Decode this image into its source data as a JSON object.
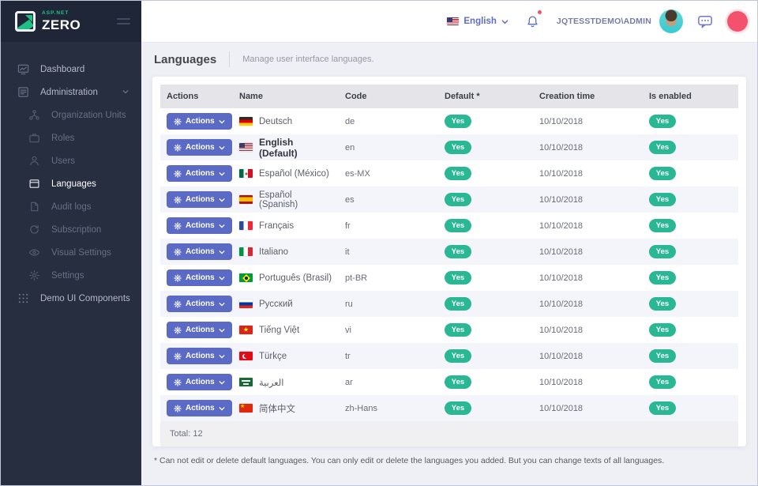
{
  "brand": {
    "top": "ASP.NET",
    "bottom": "ZERO"
  },
  "sidebar": {
    "items": [
      {
        "label": "Dashboard",
        "icon": "dashboard-icon",
        "level": "root",
        "active": false,
        "chevron": false
      },
      {
        "label": "Administration",
        "icon": "administration-icon",
        "level": "root",
        "active": false,
        "chevron": true
      },
      {
        "label": "Organization Units",
        "icon": "organization-units-icon",
        "level": "sub",
        "active": false,
        "chevron": false
      },
      {
        "label": "Roles",
        "icon": "roles-icon",
        "level": "sub",
        "active": false,
        "chevron": false
      },
      {
        "label": "Users",
        "icon": "users-icon",
        "level": "sub",
        "active": false,
        "chevron": false
      },
      {
        "label": "Languages",
        "icon": "languages-icon",
        "level": "sub",
        "active": true,
        "chevron": false
      },
      {
        "label": "Audit logs",
        "icon": "audit-logs-icon",
        "level": "sub",
        "active": false,
        "chevron": false
      },
      {
        "label": "Subscription",
        "icon": "subscription-icon",
        "level": "sub",
        "active": false,
        "chevron": false
      },
      {
        "label": "Visual Settings",
        "icon": "visual-settings-icon",
        "level": "sub",
        "active": false,
        "chevron": false
      },
      {
        "label": "Settings",
        "icon": "settings-icon",
        "level": "sub",
        "active": false,
        "chevron": false
      },
      {
        "label": "Demo UI Components",
        "icon": "demo-ui-components-icon",
        "level": "root",
        "active": false,
        "chevron": false
      }
    ]
  },
  "topbar": {
    "language": "English",
    "language_flag": "us",
    "username": "JQTESSTDEMO\\ADMIN",
    "icons": [
      "us-flag-icon",
      "chevron-down-icon",
      "bell-icon",
      "avatar",
      "chat-icon",
      "quick-panel-circle"
    ]
  },
  "page": {
    "title": "Languages",
    "subtitle": "Manage user interface languages.",
    "footnote": "* Can not edit or delete default languages. You can only edit or delete the languages you added. But you can change texts of all languages."
  },
  "table": {
    "headers": [
      "Actions",
      "Name",
      "Code",
      "Default *",
      "Creation time",
      "Is enabled"
    ],
    "actions_label": "Actions",
    "total_label": "Total: 12",
    "rows": [
      {
        "name": "Deutsch",
        "flag": "de",
        "code": "de",
        "default": "Yes",
        "creation_time": "10/10/2018",
        "is_enabled": "Yes",
        "bold": false
      },
      {
        "name": "English (Default)",
        "flag": "us",
        "code": "en",
        "default": "Yes",
        "creation_time": "10/10/2018",
        "is_enabled": "Yes",
        "bold": true
      },
      {
        "name": "Español (México)",
        "flag": "mx",
        "code": "es-MX",
        "default": "Yes",
        "creation_time": "10/10/2018",
        "is_enabled": "Yes",
        "bold": false
      },
      {
        "name": "Español (Spanish)",
        "flag": "es",
        "code": "es",
        "default": "Yes",
        "creation_time": "10/10/2018",
        "is_enabled": "Yes",
        "bold": false
      },
      {
        "name": "Français",
        "flag": "fr",
        "code": "fr",
        "default": "Yes",
        "creation_time": "10/10/2018",
        "is_enabled": "Yes",
        "bold": false
      },
      {
        "name": "Italiano",
        "flag": "it",
        "code": "it",
        "default": "Yes",
        "creation_time": "10/10/2018",
        "is_enabled": "Yes",
        "bold": false
      },
      {
        "name": "Português (Brasil)",
        "flag": "br",
        "code": "pt-BR",
        "default": "Yes",
        "creation_time": "10/10/2018",
        "is_enabled": "Yes",
        "bold": false
      },
      {
        "name": "Русский",
        "flag": "ru",
        "code": "ru",
        "default": "Yes",
        "creation_time": "10/10/2018",
        "is_enabled": "Yes",
        "bold": false
      },
      {
        "name": "Tiếng Việt",
        "flag": "vn",
        "code": "vi",
        "default": "Yes",
        "creation_time": "10/10/2018",
        "is_enabled": "Yes",
        "bold": false
      },
      {
        "name": "Türkçe",
        "flag": "tr",
        "code": "tr",
        "default": "Yes",
        "creation_time": "10/10/2018",
        "is_enabled": "Yes",
        "bold": false
      },
      {
        "name": "العربية",
        "flag": "sa",
        "code": "ar",
        "default": "Yes",
        "creation_time": "10/10/2018",
        "is_enabled": "Yes",
        "bold": false
      },
      {
        "name": "简体中文",
        "flag": "cn",
        "code": "zh-Hans",
        "default": "Yes",
        "creation_time": "10/10/2018",
        "is_enabled": "Yes",
        "bold": false
      }
    ]
  },
  "colors": {
    "accent": "#5b6ac4",
    "success": "#2ab793",
    "danger": "#f4516c",
    "sidebar_bg": "#272e40",
    "brand_green": "#1dc188"
  }
}
